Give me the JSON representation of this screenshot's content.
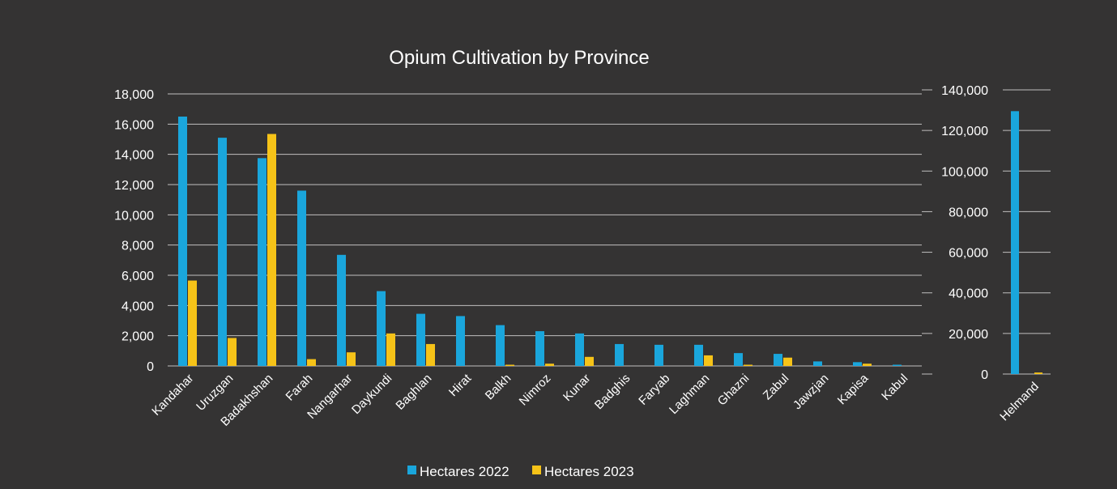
{
  "colors": {
    "background": "#343333",
    "grid": "#bfbfbf",
    "text": "#ffffff",
    "series_2022": "#1aa6dc",
    "series_2023": "#f6c318"
  },
  "chart_data": [
    {
      "type": "bar",
      "title": "Opium Cultivation by Province",
      "categories": [
        "Kandahar",
        "Uruzgan",
        "Badakhshan",
        "Farah",
        "Nangarhar",
        "Daykundi",
        "Baghlan",
        "Hirat",
        "Balkh",
        "Nimroz",
        "Kunar",
        "Badghis",
        "Faryab",
        "Laghman",
        "Ghazni",
        "Zabul",
        "Jawzjan",
        "Kapisa",
        "Kabul"
      ],
      "series": [
        {
          "name": "Hectares 2022",
          "values": [
            16500,
            15100,
            13750,
            11600,
            7350,
            4950,
            3450,
            3300,
            2700,
            2300,
            2150,
            1450,
            1400,
            1400,
            850,
            800,
            300,
            250,
            80
          ]
        },
        {
          "name": "Hectares 2023",
          "values": [
            5650,
            1850,
            15350,
            450,
            900,
            2150,
            1450,
            0,
            80,
            150,
            600,
            0,
            0,
            700,
            80,
            550,
            0,
            150,
            0
          ]
        }
      ],
      "ylim": [
        0,
        18000
      ],
      "yticks": [
        "0",
        "2,000",
        "4,000",
        "6,000",
        "8,000",
        "10,000",
        "12,000",
        "14,000",
        "16,000",
        "18,000"
      ],
      "grid": true,
      "legend": "bottom-center"
    },
    {
      "type": "bar",
      "categories": [
        "Helmand"
      ],
      "series": [
        {
          "name": "Hectares 2022",
          "values": [
            129500
          ]
        },
        {
          "name": "Hectares 2023",
          "values": [
            750
          ]
        }
      ],
      "ylim": [
        0,
        140000
      ],
      "yticks": [
        "0",
        "20,000",
        "40,000",
        "60,000",
        "80,000",
        "100,000",
        "120,000",
        "140,000"
      ],
      "grid": true
    }
  ]
}
